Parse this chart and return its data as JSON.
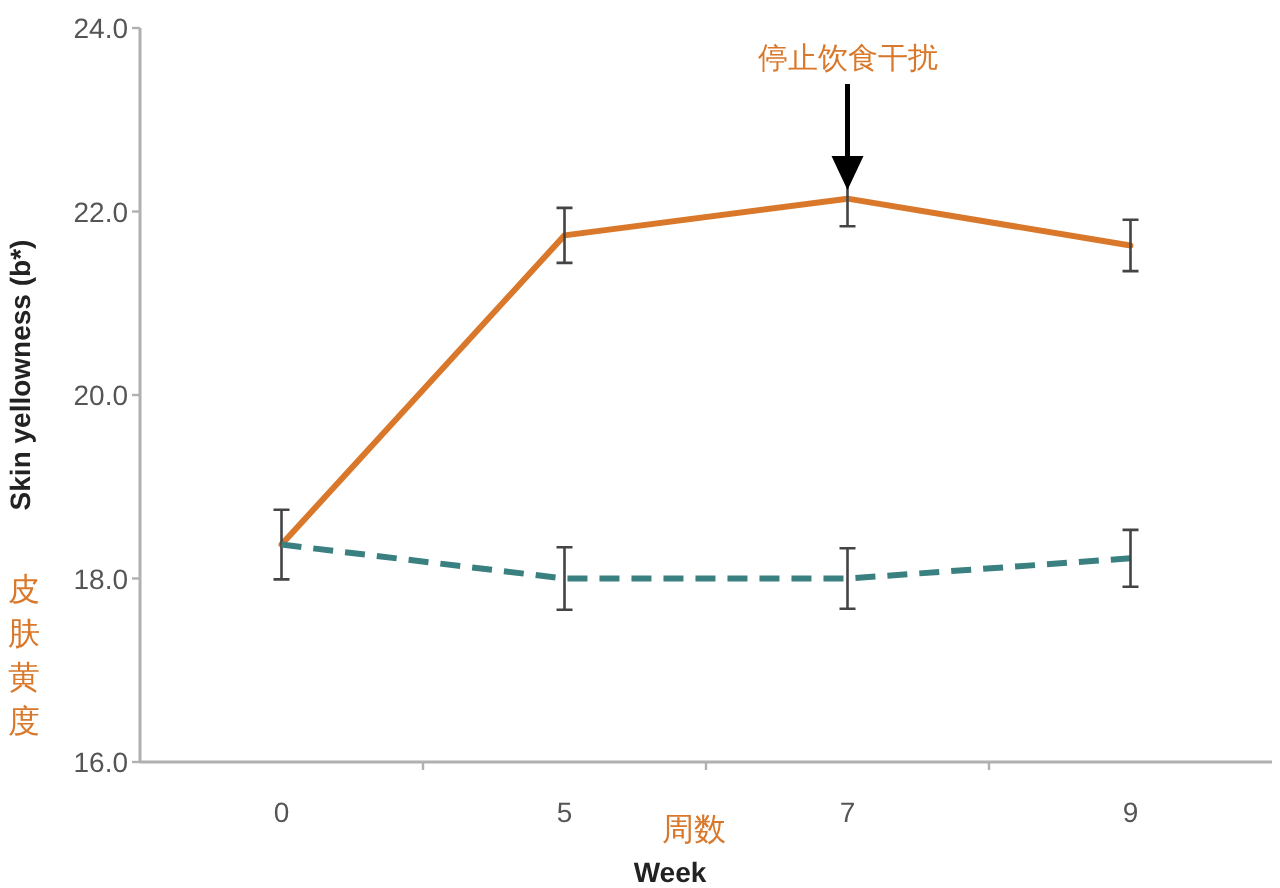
{
  "chart_data": {
    "type": "line",
    "categories": [
      "0",
      "5",
      "7",
      "9"
    ],
    "series": [
      {
        "color": "#d9782b",
        "line_style": "solid",
        "values": [
          18.37,
          21.74,
          22.14,
          21.63
        ],
        "errors": [
          0.38,
          0.3,
          0.3,
          0.28
        ]
      },
      {
        "color": "#3b8080",
        "line_style": "dashed",
        "values": [
          18.37,
          18.0,
          18.0,
          18.22
        ],
        "errors": [
          null,
          0.34,
          0.33,
          0.31
        ]
      }
    ],
    "ylim": [
      16,
      24
    ],
    "yticks": [
      {
        "value": 16,
        "label": "16.0"
      },
      {
        "value": 18,
        "label": "18.0"
      },
      {
        "value": 20,
        "label": "20.0"
      },
      {
        "value": 22,
        "label": "22.0"
      },
      {
        "value": 24,
        "label": "24.0"
      }
    ],
    "ylabel": "Skin yellowness (b*)",
    "xlabel": "Week",
    "annotations": [
      "停止饮食干扰",
      "皮肤黄度",
      "周数"
    ]
  }
}
